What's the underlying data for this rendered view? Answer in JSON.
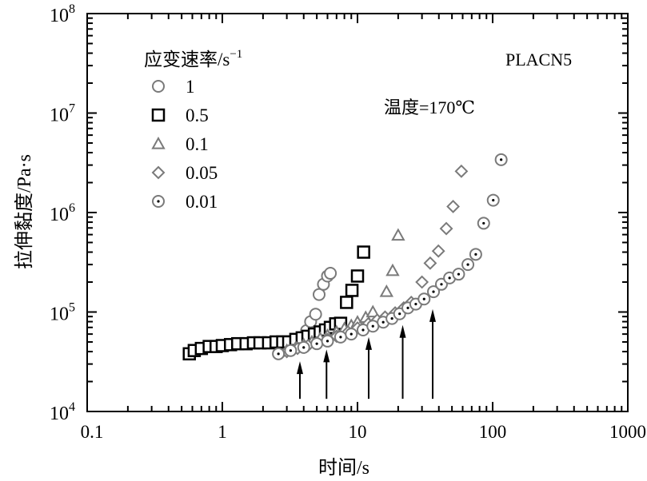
{
  "chart_data": {
    "type": "scatter",
    "title": "",
    "xlabel": "时间/s",
    "ylabel": "拉伸黏度/Pa·s",
    "xscale": "log",
    "yscale": "log",
    "xlim": [
      0.1,
      1000
    ],
    "ylim": [
      10000,
      100000000
    ],
    "x_ticks": [
      {
        "value": 0.1,
        "label": "0.1"
      },
      {
        "value": 1,
        "label": "1"
      },
      {
        "value": 10,
        "label": "10"
      },
      {
        "value": 100,
        "label": "100"
      },
      {
        "value": 1000,
        "label": "1000"
      }
    ],
    "y_ticks": [
      {
        "value": 10000,
        "base": "10",
        "exp": "4"
      },
      {
        "value": 100000,
        "base": "10",
        "exp": "5"
      },
      {
        "value": 1000000,
        "base": "10",
        "exp": "6"
      },
      {
        "value": 10000000,
        "base": "10",
        "exp": "7"
      },
      {
        "value": 100000000,
        "base": "10",
        "exp": "8"
      }
    ],
    "legend": {
      "title": "应变速率/s",
      "title_sup": "−1",
      "placement": "top-left"
    },
    "annotations": {
      "sample": "PLACN5",
      "temperature": "温度=170℃"
    },
    "arrows": [
      {
        "x": 3.75,
        "y_tip": 32000,
        "y_base": 13400
      },
      {
        "x": 5.9,
        "y_tip": 42000,
        "y_base": 13400
      },
      {
        "x": 12.1,
        "y_tip": 56000,
        "y_base": 13400
      },
      {
        "x": 21.6,
        "y_tip": 74000,
        "y_base": 13400
      },
      {
        "x": 36,
        "y_tip": 107000,
        "y_base": 13400
      }
    ],
    "series": [
      {
        "name": "1",
        "marker": "circle",
        "color": "#7a7a7a",
        "x": [
          2.7,
          3.0,
          3.4,
          3.8,
          4.2,
          4.5,
          4.9,
          5.2,
          5.6,
          6.0,
          6.3
        ],
        "y": [
          40000,
          42000,
          46000,
          52000,
          65000,
          80000,
          95000,
          150000,
          190000,
          230000,
          245000
        ]
      },
      {
        "name": "0.5",
        "marker": "square",
        "color": "#000000",
        "x": [
          0.57,
          0.62,
          0.7,
          0.8,
          0.9,
          1.0,
          1.15,
          1.3,
          1.5,
          1.7,
          1.9,
          2.2,
          2.5,
          2.8,
          3.1,
          3.5,
          3.9,
          4.3,
          4.8,
          5.3,
          5.8,
          6.3,
          6.9,
          7.5,
          8.3,
          9.1,
          10.0,
          11.1
        ],
        "y": [
          38000,
          41000,
          43000,
          45000,
          45000,
          46000,
          47000,
          48000,
          48000,
          49000,
          49000,
          49000,
          50000,
          50000,
          50000,
          53000,
          55000,
          57000,
          60000,
          63000,
          66000,
          70000,
          76000,
          77000,
          125000,
          165000,
          230000,
          400000
        ]
      },
      {
        "name": "0.1",
        "marker": "triangle",
        "color": "#7a7a7a",
        "x": [
          3.0,
          3.5,
          4.0,
          4.6,
          5.3,
          6.0,
          7.0,
          8.0,
          9.0,
          10.0,
          11.5,
          13.0,
          16.4,
          18.2,
          20.0
        ],
        "y": [
          41000,
          44000,
          47000,
          50000,
          54000,
          58000,
          63000,
          68000,
          73000,
          79000,
          88000,
          100000,
          160000,
          260000,
          590000
        ]
      },
      {
        "name": "0.05",
        "marker": "diamond",
        "color": "#7a7a7a",
        "x": [
          3.0,
          3.6,
          4.3,
          5.0,
          6.0,
          7.0,
          8.5,
          10,
          12,
          14,
          16,
          19,
          22,
          25,
          30,
          34.5,
          39.7,
          45.4,
          51,
          58.7
        ],
        "y": [
          40000,
          43000,
          46000,
          49000,
          53000,
          57000,
          63000,
          69000,
          76000,
          83000,
          89000,
          98000,
          110000,
          125000,
          200000,
          310000,
          410000,
          690000,
          1150000,
          2600000
        ]
      },
      {
        "name": "0.01",
        "marker": "dotted-circle",
        "color": "#7a7a7a",
        "x": [
          2.6,
          3.2,
          4.0,
          5.0,
          6.0,
          7.5,
          9,
          11,
          13,
          15.5,
          18,
          20.5,
          23.6,
          27,
          31.1,
          36.5,
          41.8,
          48,
          56,
          65.6,
          75,
          85.8,
          101,
          115.6
        ],
        "y": [
          38000,
          41000,
          44000,
          48000,
          51000,
          56000,
          60000,
          66000,
          72000,
          79000,
          86000,
          96000,
          110000,
          120000,
          135000,
          160000,
          190000,
          220000,
          240000,
          300000,
          380000,
          780000,
          1330000,
          3400000
        ]
      }
    ]
  }
}
